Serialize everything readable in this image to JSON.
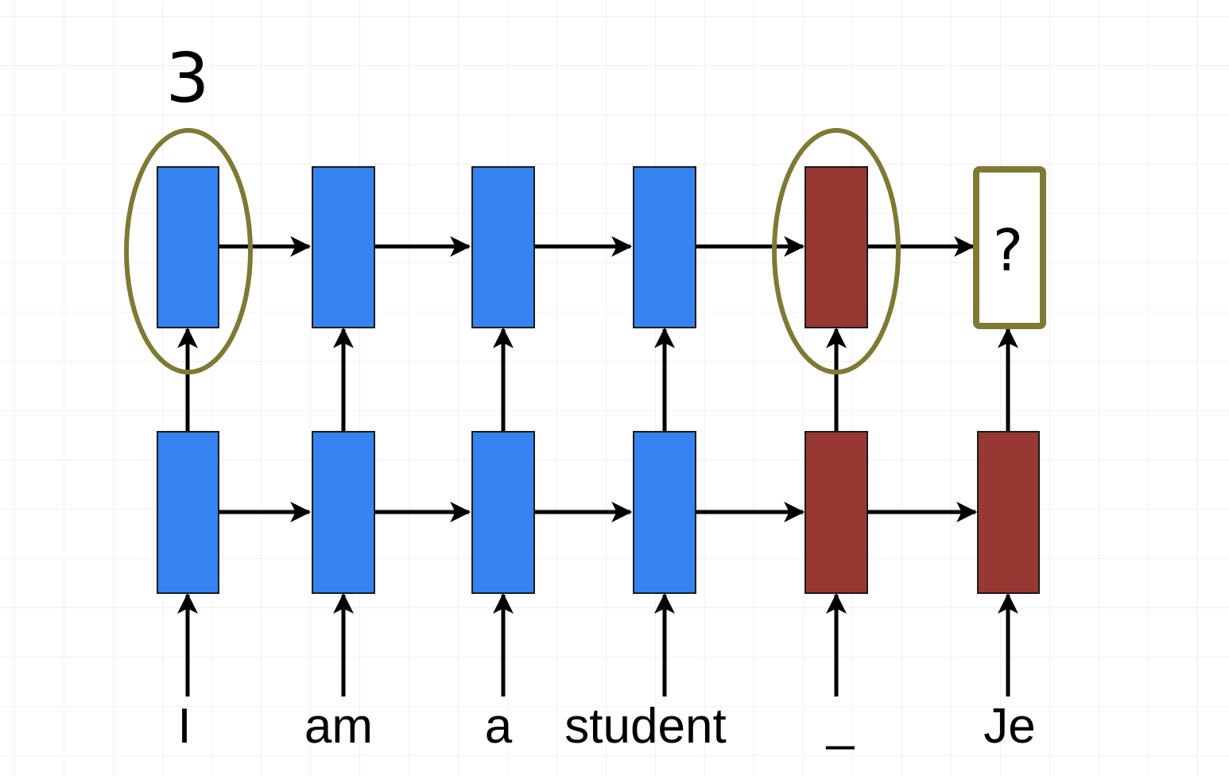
{
  "step_label": "3",
  "words": [
    "I",
    "am",
    "a",
    "student",
    "_",
    "Je"
  ],
  "output_unknown": "?",
  "colors": {
    "encoder_cell": "#3583f1",
    "decoder_cell": "#973832",
    "highlight_outline": "#7e7a33",
    "arrow": "#000000",
    "grid": "#f1f1f1"
  }
}
